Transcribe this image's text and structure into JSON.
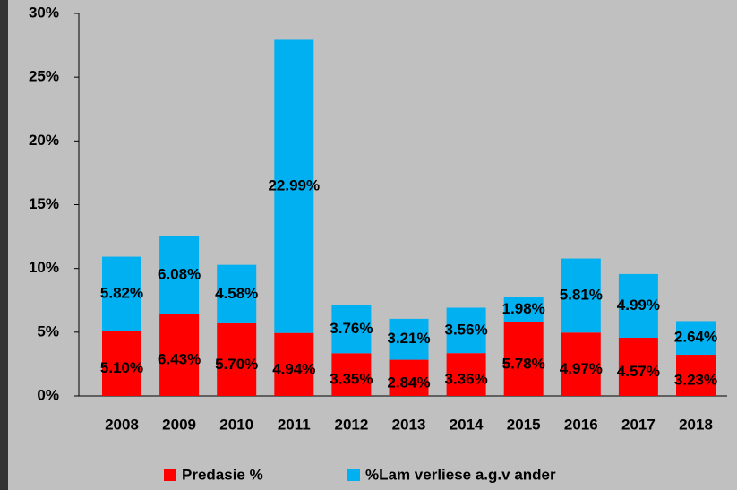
{
  "chart_data": {
    "type": "stacked_bar",
    "categories": [
      "2008",
      "2009",
      "2010",
      "2011",
      "2012",
      "2013",
      "2014",
      "2015",
      "2016",
      "2017",
      "2018"
    ],
    "series": [
      {
        "name": "Predasie %",
        "color": "#ff0000",
        "values": [
          5.1,
          6.43,
          5.7,
          4.94,
          3.35,
          2.84,
          3.36,
          5.78,
          4.97,
          4.57,
          3.23
        ],
        "value_labels": [
          "5.10%",
          "6.43%",
          "5.70%",
          "4.94%",
          "3.35%",
          "2.84%",
          "3.36%",
          "5.78%",
          "4.97%",
          "4.57%",
          "3.23%"
        ]
      },
      {
        "name": "%Lam verliese a.g.v ander",
        "color": "#00b0f0",
        "values": [
          5.82,
          6.08,
          4.58,
          22.99,
          3.76,
          3.21,
          3.56,
          1.98,
          5.81,
          4.99,
          2.64
        ],
        "value_labels": [
          "5.82%",
          "6.08%",
          "4.58%",
          "22.99%",
          "3.76%",
          "3.21%",
          "3.56%",
          "1.98%",
          "5.81%",
          "4.99%",
          "2.64%"
        ]
      }
    ],
    "ylim": [
      0,
      30
    ],
    "yticks": [
      {
        "value": 0,
        "label": "0%"
      },
      {
        "value": 5,
        "label": "5%"
      },
      {
        "value": 10,
        "label": "10%"
      },
      {
        "value": 15,
        "label": "15%"
      },
      {
        "value": 20,
        "label": "20%"
      },
      {
        "value": 25,
        "label": "25%"
      },
      {
        "value": 30,
        "label": "30%"
      }
    ],
    "legend": "bottom"
  }
}
